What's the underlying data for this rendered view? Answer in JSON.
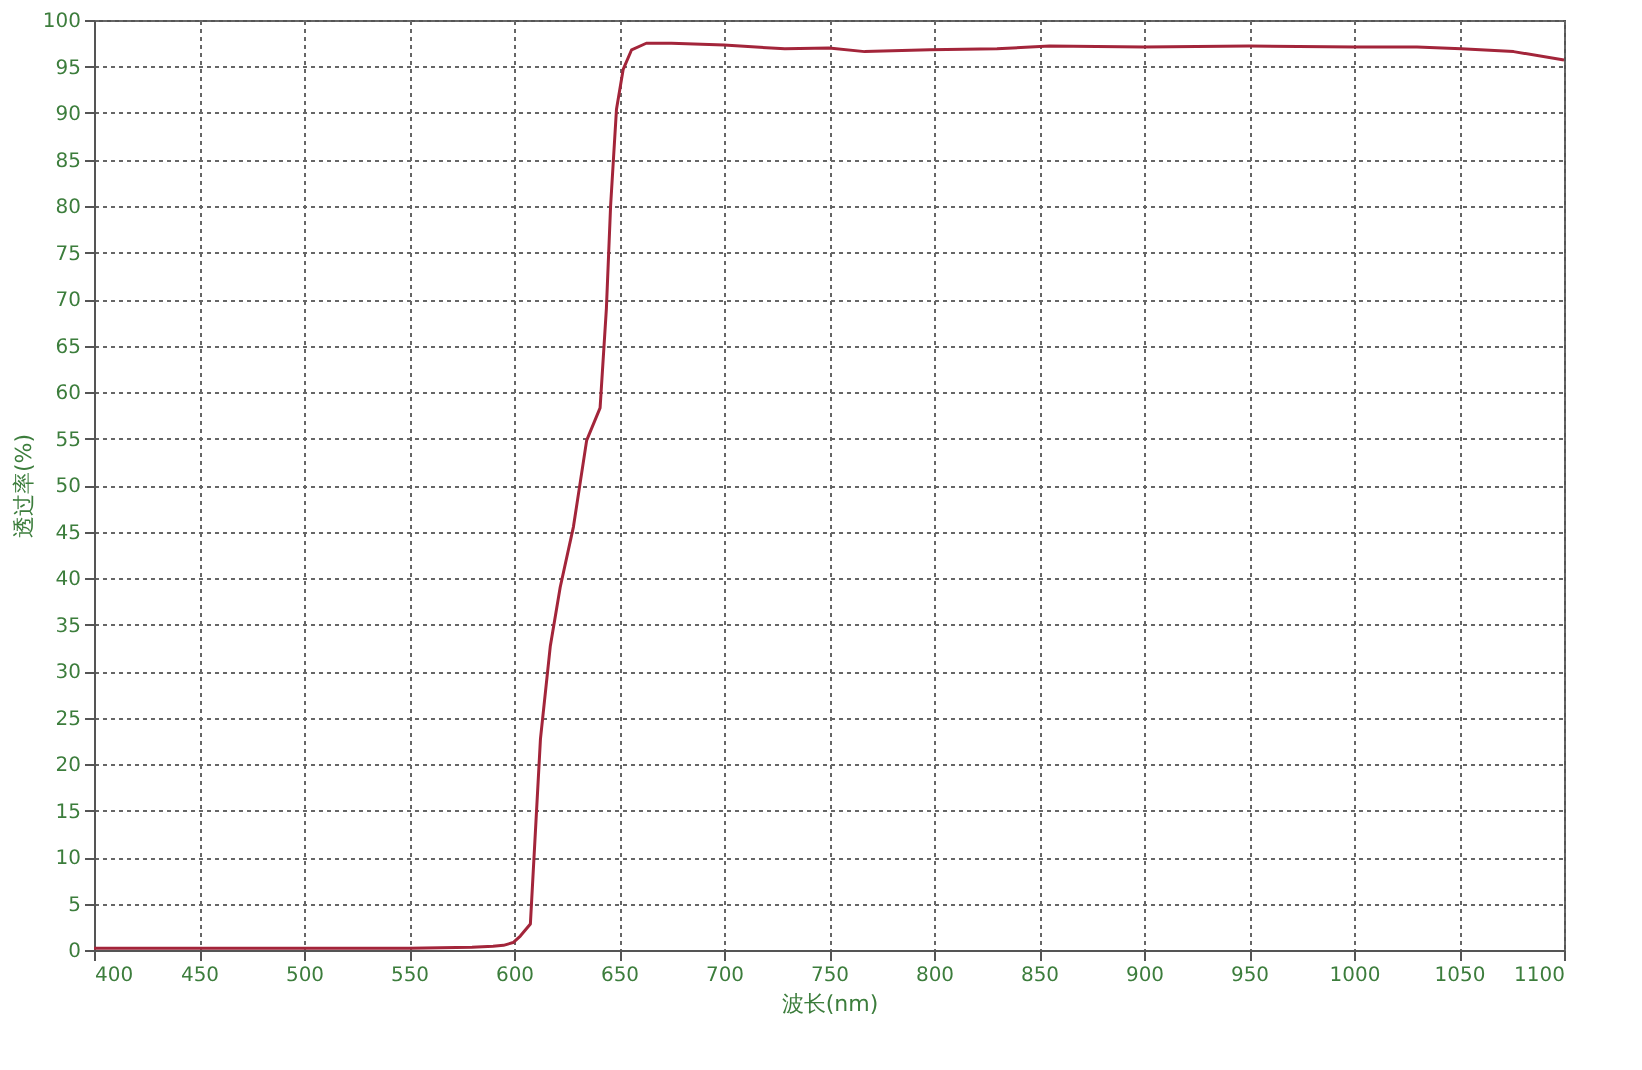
{
  "chart_data": {
    "type": "line",
    "xlabel": "波长(nm)",
    "ylabel": "透过率(%)",
    "x": [
      400,
      450,
      500,
      550,
      580,
      590,
      595,
      599.6,
      603,
      607.8,
      612.6,
      617.3,
      622,
      628.3,
      634.6,
      641,
      644,
      646,
      648.8,
      652,
      656,
      663,
      675,
      700,
      729,
      750,
      767,
      798,
      830,
      855,
      900,
      950,
      1000.7,
      1030,
      1051,
      1076,
      1100
    ],
    "series": [
      {
        "color": "#a3253a",
        "values": [
          0.2,
          0.2,
          0.2,
          0.2,
          0.3,
          0.4,
          0.5,
          0.8,
          1.5,
          2.8,
          22.7,
          32.7,
          39,
          45.5,
          54.8,
          58.3,
          69,
          80,
          90.4,
          94.7,
          96.8,
          97.5,
          97.5,
          97.3,
          96.9,
          97,
          96.6,
          96.8,
          96.9,
          97.2,
          97.1,
          97.2,
          97.1,
          97.1,
          96.9,
          96.6,
          95.7
        ]
      }
    ],
    "xlim": [
      400,
      1100
    ],
    "xticks": [
      400,
      450,
      500,
      550,
      600,
      650,
      700,
      750,
      800,
      850,
      900,
      950,
      1000,
      1050,
      1100
    ],
    "ylim": [
      0,
      100
    ],
    "yticks": [
      0,
      5,
      10,
      15,
      20,
      25,
      30,
      35,
      40,
      45,
      50,
      55,
      60,
      65,
      70,
      75,
      80,
      85,
      90,
      95,
      100
    ],
    "grid": true,
    "legend": false,
    "marker": "none",
    "line_style": "solid"
  }
}
